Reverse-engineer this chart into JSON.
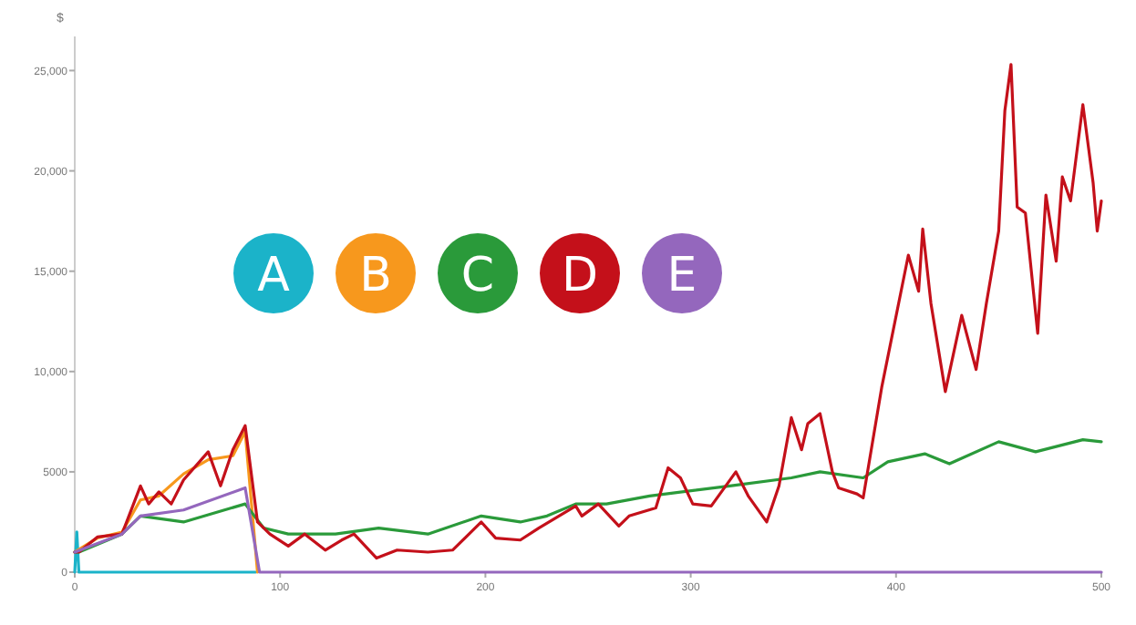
{
  "chart_data": {
    "type": "line",
    "ylabel": "$",
    "xlim": [
      0,
      500
    ],
    "ylim": [
      0,
      26700
    ],
    "xticks": [
      0,
      100,
      200,
      300,
      400,
      500
    ],
    "yticks": [
      0,
      5000,
      {
        "value": 10000,
        "label": "10,000"
      },
      {
        "value": 15000,
        "label": "15,000"
      },
      {
        "value": 20000,
        "label": "20,000"
      },
      {
        "value": 25000,
        "label": "25,000"
      }
    ],
    "grid": false,
    "legend": "top left",
    "marker": "none",
    "line_style": "solid",
    "series": [
      {
        "name": "A",
        "color": "#1bb3c9",
        "x": [
          0,
          1,
          2,
          88
        ],
        "values": [
          0,
          2000,
          0,
          0
        ]
      },
      {
        "name": "B",
        "color": "#f7981d",
        "x": [
          0,
          11,
          23,
          32,
          41,
          53,
          65,
          77,
          83,
          89
        ],
        "values": [
          1000,
          1700,
          2000,
          3600,
          3800,
          4900,
          5600,
          5800,
          7000,
          0
        ]
      },
      {
        "name": "C",
        "color": "#2a9a3a",
        "x": [
          0,
          2,
          23,
          32,
          53,
          83,
          92,
          104,
          127,
          148,
          172,
          198,
          217,
          230,
          244,
          259,
          280,
          319,
          349,
          363,
          384,
          396,
          414,
          426,
          450,
          468,
          491,
          500
        ],
        "values": [
          1000,
          1000,
          1900,
          2800,
          2500,
          3400,
          2200,
          1900,
          1900,
          2200,
          1900,
          2800,
          2500,
          2800,
          3400,
          3400,
          3800,
          4300,
          4700,
          5000,
          4700,
          5500,
          5900,
          5400,
          6500,
          6000,
          6600,
          6500
        ]
      },
      {
        "name": "D",
        "color": "#c4101a",
        "x": [
          0,
          2,
          11,
          23,
          32,
          36,
          41,
          47,
          53,
          65,
          71,
          77,
          83,
          89,
          95,
          104,
          112,
          122,
          130,
          136,
          147,
          157,
          172,
          184,
          198,
          205,
          217,
          226,
          244,
          247,
          255,
          265,
          270,
          283,
          289,
          295,
          301,
          310,
          322,
          328,
          337,
          343,
          349,
          354,
          357,
          363,
          369,
          372,
          381,
          384,
          393,
          406,
          411,
          413,
          417,
          424,
          432,
          439,
          444,
          450,
          453,
          456,
          459,
          463,
          469,
          473,
          478,
          481,
          485,
          491,
          496,
          498,
          500
        ],
        "values": [
          1000,
          1000,
          1750,
          1900,
          4300,
          3400,
          4000,
          3400,
          4600,
          6000,
          4300,
          6100,
          7300,
          2500,
          1900,
          1300,
          1900,
          1100,
          1600,
          1900,
          700,
          1100,
          1000,
          1100,
          2500,
          1700,
          1600,
          2200,
          3300,
          2800,
          3400,
          2300,
          2800,
          3200,
          5200,
          4700,
          3400,
          3300,
          5000,
          3800,
          2500,
          4300,
          7700,
          6100,
          7400,
          7900,
          5000,
          4200,
          3900,
          3700,
          9200,
          15800,
          14000,
          17100,
          13400,
          9000,
          12800,
          10100,
          13400,
          17000,
          23000,
          25300,
          18200,
          17900,
          11900,
          18800,
          15500,
          19700,
          18500,
          23300,
          19400,
          17000,
          18500
        ]
      },
      {
        "name": "E",
        "color": "#9467bd",
        "x": [
          0,
          23,
          32,
          53,
          83,
          90,
          500
        ],
        "values": [
          1000,
          1900,
          2800,
          3100,
          4200,
          0,
          0
        ]
      }
    ]
  }
}
